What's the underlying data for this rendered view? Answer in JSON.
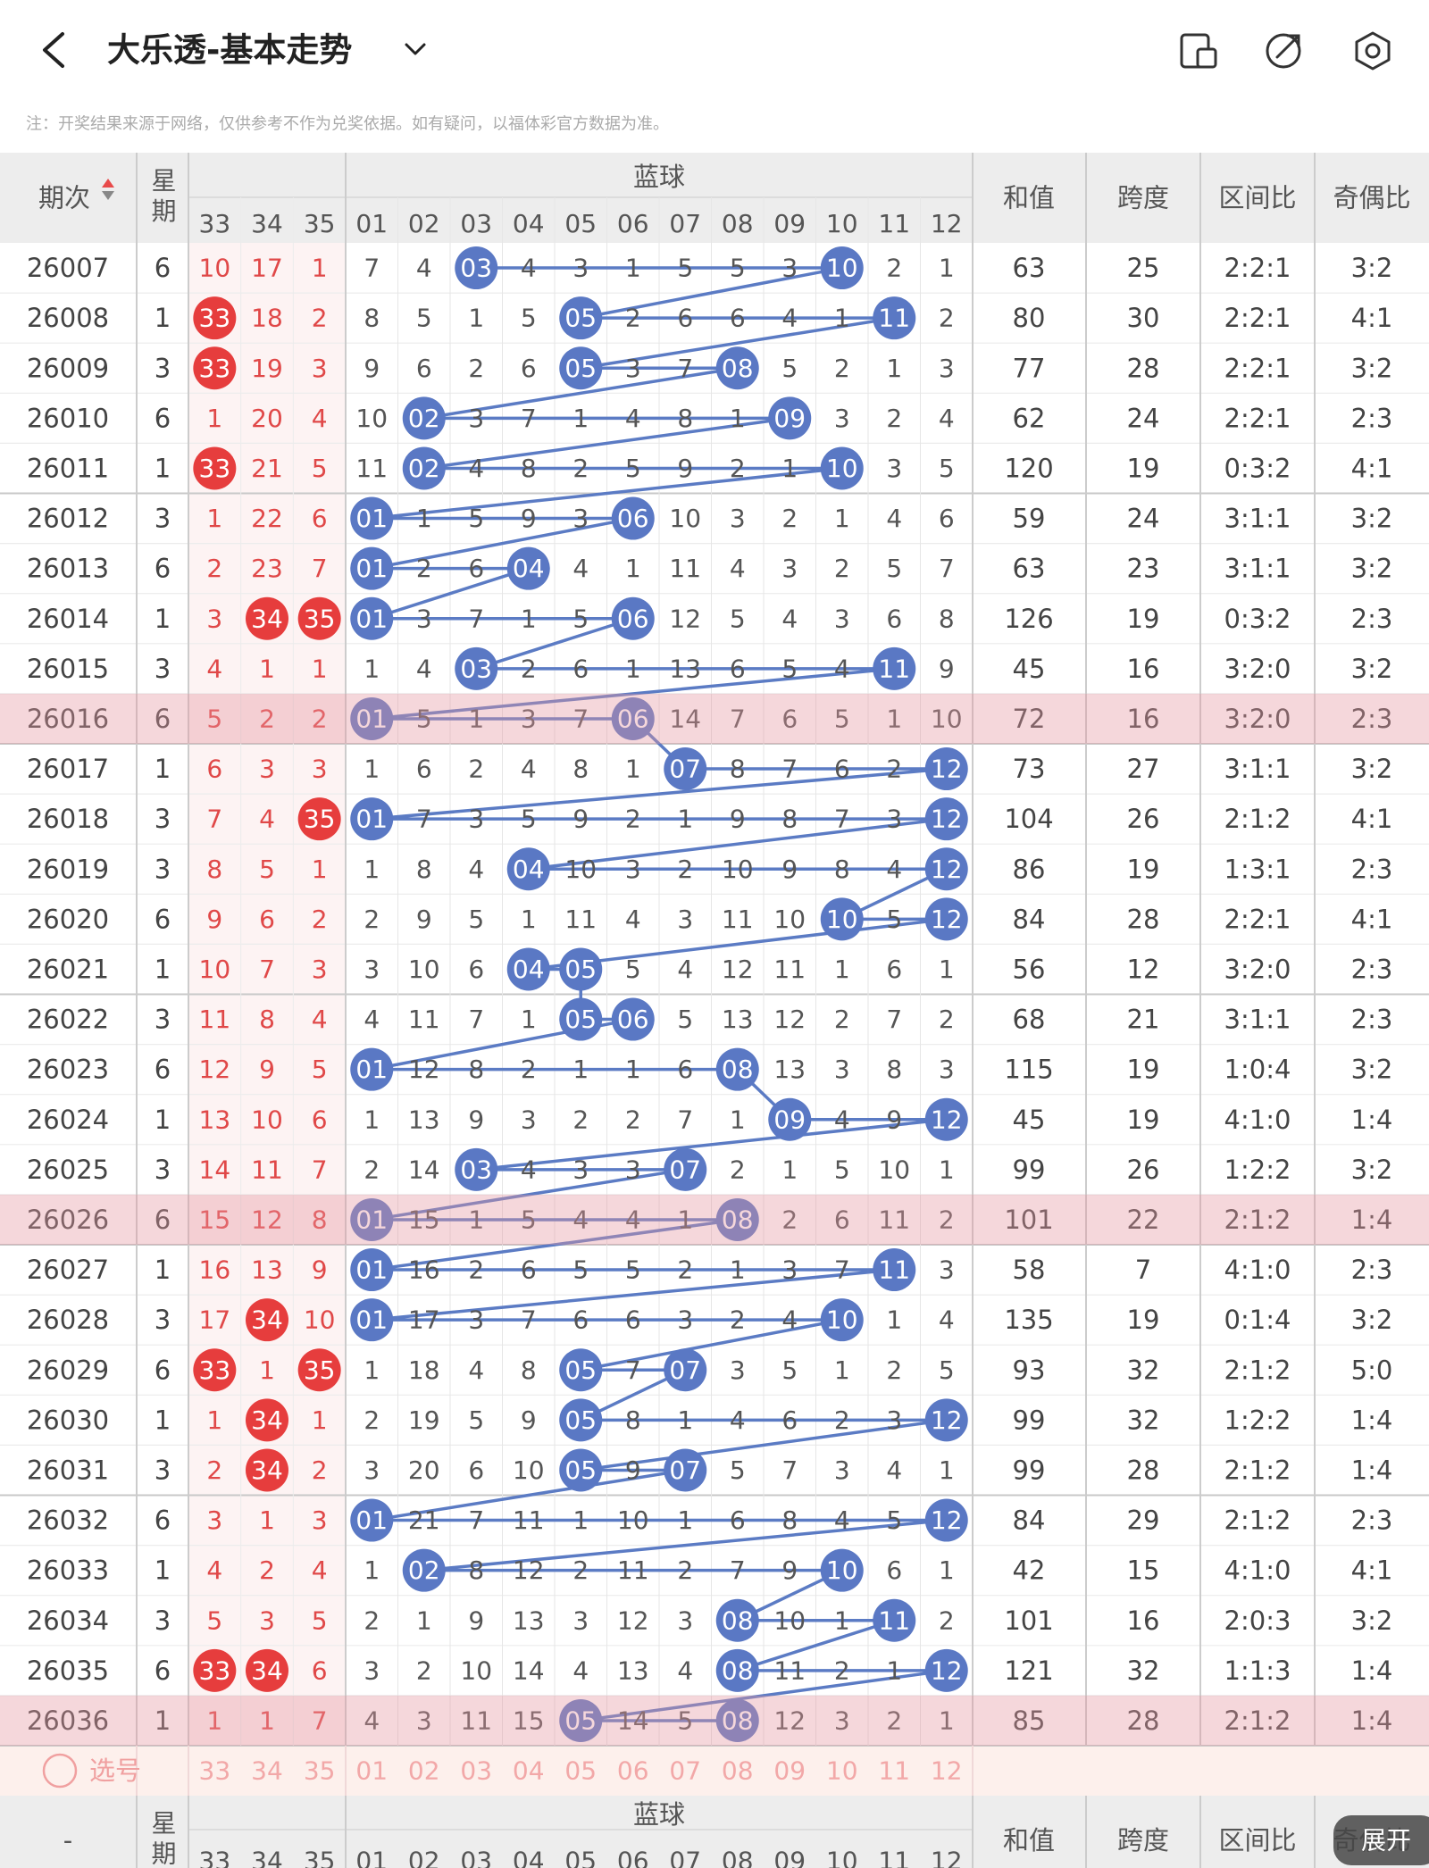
{
  "top_bar": {
    "title": "大乐透-基本走势"
  },
  "notice": "注：开奖结果来源于网络，仅供参考不作为兑奖依据。如有疑问，以福体彩官方数据为准。",
  "table": {
    "header": {
      "period": "期次",
      "week": "星期",
      "blue_group": "蓝球",
      "red_columns": [
        "33",
        "34",
        "35"
      ],
      "blue_columns": [
        "01",
        "02",
        "03",
        "04",
        "05",
        "06",
        "07",
        "08",
        "09",
        "10",
        "11",
        "12"
      ],
      "sum": "和值",
      "span": "跨度",
      "zone_ratio": "区间比",
      "odd_even_ratio": "奇偶比"
    },
    "rows": [
      {
        "period": "26007",
        "week": "6",
        "red": [
          "10",
          "17",
          "1"
        ],
        "blue": [
          "7",
          "4",
          {
            "ball": "03"
          },
          "4",
          "3",
          "1",
          "5",
          "5",
          "3",
          {
            "ball": "10"
          },
          "2",
          "1"
        ],
        "sum": "63",
        "span": "25",
        "zone_ratio": "2:2:1",
        "odd_even_ratio": "3:2"
      },
      {
        "period": "26008",
        "week": "1",
        "red": [
          {
            "ball": "33"
          },
          "18",
          "2"
        ],
        "blue": [
          "8",
          "5",
          "1",
          "5",
          {
            "ball": "05"
          },
          "2",
          "6",
          "6",
          "4",
          "1",
          {
            "ball": "11"
          },
          "2"
        ],
        "sum": "80",
        "span": "30",
        "zone_ratio": "2:2:1",
        "odd_even_ratio": "4:1"
      },
      {
        "period": "26009",
        "week": "3",
        "red": [
          {
            "ball": "33"
          },
          "19",
          "3"
        ],
        "blue": [
          "9",
          "6",
          "2",
          "6",
          {
            "ball": "05"
          },
          "3",
          "7",
          {
            "ball": "08"
          },
          "5",
          "2",
          "1",
          "3"
        ],
        "sum": "77",
        "span": "28",
        "zone_ratio": "2:2:1",
        "odd_even_ratio": "3:2"
      },
      {
        "period": "26010",
        "week": "6",
        "red": [
          "1",
          "20",
          "4"
        ],
        "blue": [
          "10",
          {
            "ball": "02"
          },
          "3",
          "7",
          "1",
          "4",
          "8",
          "1",
          {
            "ball": "09"
          },
          "3",
          "2",
          "4"
        ],
        "sum": "62",
        "span": "24",
        "zone_ratio": "2:2:1",
        "odd_even_ratio": "2:3"
      },
      {
        "period": "26011",
        "week": "1",
        "red": [
          {
            "ball": "33"
          },
          "21",
          "5"
        ],
        "blue": [
          "11",
          {
            "ball": "02"
          },
          "4",
          "8",
          "2",
          "5",
          "9",
          "2",
          "1",
          {
            "ball": "10"
          },
          "3",
          "5"
        ],
        "sum": "120",
        "span": "19",
        "zone_ratio": "0:3:2",
        "odd_even_ratio": "4:1"
      },
      {
        "period": "26012",
        "week": "3",
        "red": [
          "1",
          "22",
          "6"
        ],
        "blue": [
          {
            "ball": "01"
          },
          "1",
          "5",
          "9",
          "3",
          {
            "ball": "06"
          },
          "10",
          "3",
          "2",
          "1",
          "4",
          "6"
        ],
        "sum": "59",
        "span": "24",
        "zone_ratio": "3:1:1",
        "odd_even_ratio": "3:2"
      },
      {
        "period": "26013",
        "week": "6",
        "red": [
          "2",
          "23",
          "7"
        ],
        "blue": [
          {
            "ball": "01"
          },
          "2",
          "6",
          {
            "ball": "04"
          },
          "4",
          "1",
          "11",
          "4",
          "3",
          "2",
          "5",
          "7"
        ],
        "sum": "63",
        "span": "23",
        "zone_ratio": "3:1:1",
        "odd_even_ratio": "3:2"
      },
      {
        "period": "26014",
        "week": "1",
        "red": [
          "3",
          {
            "ball": "34"
          },
          {
            "ball": "35"
          }
        ],
        "blue": [
          {
            "ball": "01"
          },
          "3",
          "7",
          "1",
          "5",
          {
            "ball": "06"
          },
          "12",
          "5",
          "4",
          "3",
          "6",
          "8"
        ],
        "sum": "126",
        "span": "19",
        "zone_ratio": "0:3:2",
        "odd_even_ratio": "2:3"
      },
      {
        "period": "26015",
        "week": "3",
        "red": [
          "4",
          "1",
          "1"
        ],
        "blue": [
          "1",
          "4",
          {
            "ball": "03"
          },
          "2",
          "6",
          "1",
          "13",
          "6",
          "5",
          "4",
          {
            "ball": "11"
          },
          "9"
        ],
        "sum": "45",
        "span": "16",
        "zone_ratio": "3:2:0",
        "odd_even_ratio": "3:2"
      },
      {
        "period": "26016",
        "week": "6",
        "red": [
          "5",
          "2",
          "2"
        ],
        "blue": [
          {
            "ball": "01"
          },
          "5",
          "1",
          "3",
          "7",
          {
            "ball": "06"
          },
          "14",
          "7",
          "6",
          "5",
          "1",
          "10"
        ],
        "sum": "72",
        "span": "16",
        "zone_ratio": "3:2:0",
        "odd_even_ratio": "2:3"
      },
      {
        "period": "26017",
        "week": "1",
        "red": [
          "6",
          "3",
          "3"
        ],
        "blue": [
          "1",
          "6",
          "2",
          "4",
          "8",
          "1",
          {
            "ball": "07"
          },
          "8",
          "7",
          "6",
          "2",
          {
            "ball": "12"
          }
        ],
        "sum": "73",
        "span": "27",
        "zone_ratio": "3:1:1",
        "odd_even_ratio": "3:2"
      },
      {
        "period": "26018",
        "week": "3",
        "red": [
          "7",
          "4",
          {
            "ball": "35"
          }
        ],
        "blue": [
          {
            "ball": "01"
          },
          "7",
          "3",
          "5",
          "9",
          "2",
          "1",
          "9",
          "8",
          "7",
          "3",
          {
            "ball": "12"
          }
        ],
        "sum": "104",
        "span": "26",
        "zone_ratio": "2:1:2",
        "odd_even_ratio": "4:1"
      },
      {
        "period": "26019",
        "week": "3",
        "red": [
          "8",
          "5",
          "1"
        ],
        "blue": [
          "1",
          "8",
          "4",
          {
            "ball": "04"
          },
          "10",
          "3",
          "2",
          "10",
          "9",
          "8",
          "4",
          {
            "ball": "12"
          }
        ],
        "sum": "86",
        "span": "19",
        "zone_ratio": "1:3:1",
        "odd_even_ratio": "2:3"
      },
      {
        "period": "26020",
        "week": "6",
        "red": [
          "9",
          "6",
          "2"
        ],
        "blue": [
          "2",
          "9",
          "5",
          "1",
          "11",
          "4",
          "3",
          "11",
          "10",
          {
            "ball": "10"
          },
          "5",
          {
            "ball": "12"
          }
        ],
        "sum": "84",
        "span": "28",
        "zone_ratio": "2:2:1",
        "odd_even_ratio": "4:1"
      },
      {
        "period": "26021",
        "week": "1",
        "red": [
          "10",
          "7",
          "3"
        ],
        "blue": [
          "3",
          "10",
          "6",
          {
            "ball": "04"
          },
          {
            "ball": "05"
          },
          "5",
          "4",
          "12",
          "11",
          "1",
          "6",
          "1"
        ],
        "sum": "56",
        "span": "12",
        "zone_ratio": "3:2:0",
        "odd_even_ratio": "2:3"
      },
      {
        "period": "26022",
        "week": "3",
        "red": [
          "11",
          "8",
          "4"
        ],
        "blue": [
          "4",
          "11",
          "7",
          "1",
          {
            "ball": "05"
          },
          {
            "ball": "06"
          },
          "5",
          "13",
          "12",
          "2",
          "7",
          "2"
        ],
        "sum": "68",
        "span": "21",
        "zone_ratio": "3:1:1",
        "odd_even_ratio": "2:3"
      },
      {
        "period": "26023",
        "week": "6",
        "red": [
          "12",
          "9",
          "5"
        ],
        "blue": [
          {
            "ball": "01"
          },
          "12",
          "8",
          "2",
          "1",
          "1",
          "6",
          {
            "ball": "08"
          },
          "13",
          "3",
          "8",
          "3"
        ],
        "sum": "115",
        "span": "19",
        "zone_ratio": "1:0:4",
        "odd_even_ratio": "3:2"
      },
      {
        "period": "26024",
        "week": "1",
        "red": [
          "13",
          "10",
          "6"
        ],
        "blue": [
          "1",
          "13",
          "9",
          "3",
          "2",
          "2",
          "7",
          "1",
          {
            "ball": "09"
          },
          "4",
          "9",
          {
            "ball": "12"
          }
        ],
        "sum": "45",
        "span": "19",
        "zone_ratio": "4:1:0",
        "odd_even_ratio": "1:4"
      },
      {
        "period": "26025",
        "week": "3",
        "red": [
          "14",
          "11",
          "7"
        ],
        "blue": [
          "2",
          "14",
          {
            "ball": "03"
          },
          "4",
          "3",
          "3",
          {
            "ball": "07"
          },
          "2",
          "1",
          "5",
          "10",
          "1"
        ],
        "sum": "99",
        "span": "26",
        "zone_ratio": "1:2:2",
        "odd_even_ratio": "3:2"
      },
      {
        "period": "26026",
        "week": "6",
        "red": [
          "15",
          "12",
          "8"
        ],
        "blue": [
          {
            "ball": "01"
          },
          "15",
          "1",
          "5",
          "4",
          "4",
          "1",
          {
            "ball": "08"
          },
          "2",
          "6",
          "11",
          "2"
        ],
        "sum": "101",
        "span": "22",
        "zone_ratio": "2:1:2",
        "odd_even_ratio": "1:4"
      },
      {
        "period": "26027",
        "week": "1",
        "red": [
          "16",
          "13",
          "9"
        ],
        "blue": [
          {
            "ball": "01"
          },
          "16",
          "2",
          "6",
          "5",
          "5",
          "2",
          "1",
          "3",
          "7",
          {
            "ball": "11"
          },
          "3"
        ],
        "sum": "58",
        "span": "7",
        "zone_ratio": "4:1:0",
        "odd_even_ratio": "2:3"
      },
      {
        "period": "26028",
        "week": "3",
        "red": [
          "17",
          {
            "ball": "34"
          },
          "10"
        ],
        "blue": [
          {
            "ball": "01"
          },
          "17",
          "3",
          "7",
          "6",
          "6",
          "3",
          "2",
          "4",
          {
            "ball": "10"
          },
          "1",
          "4"
        ],
        "sum": "135",
        "span": "19",
        "zone_ratio": "0:1:4",
        "odd_even_ratio": "3:2"
      },
      {
        "period": "26029",
        "week": "6",
        "red": [
          {
            "ball": "33"
          },
          "1",
          {
            "ball": "35"
          }
        ],
        "blue": [
          "1",
          "18",
          "4",
          "8",
          {
            "ball": "05"
          },
          "7",
          {
            "ball": "07"
          },
          "3",
          "5",
          "1",
          "2",
          "5"
        ],
        "sum": "93",
        "span": "32",
        "zone_ratio": "2:1:2",
        "odd_even_ratio": "5:0"
      },
      {
        "period": "26030",
        "week": "1",
        "red": [
          "1",
          {
            "ball": "34"
          },
          "1"
        ],
        "blue": [
          "2",
          "19",
          "5",
          "9",
          {
            "ball": "05"
          },
          "8",
          "1",
          "4",
          "6",
          "2",
          "3",
          {
            "ball": "12"
          }
        ],
        "sum": "99",
        "span": "32",
        "zone_ratio": "1:2:2",
        "odd_even_ratio": "1:4"
      },
      {
        "period": "26031",
        "week": "3",
        "red": [
          "2",
          {
            "ball": "34"
          },
          "2"
        ],
        "blue": [
          "3",
          "20",
          "6",
          "10",
          {
            "ball": "05"
          },
          "9",
          {
            "ball": "07"
          },
          "5",
          "7",
          "3",
          "4",
          "1"
        ],
        "sum": "99",
        "span": "28",
        "zone_ratio": "2:1:2",
        "odd_even_ratio": "1:4"
      },
      {
        "period": "26032",
        "week": "6",
        "red": [
          "3",
          "1",
          "3"
        ],
        "blue": [
          {
            "ball": "01"
          },
          "21",
          "7",
          "11",
          "1",
          "10",
          "1",
          "6",
          "8",
          "4",
          "5",
          {
            "ball": "12"
          }
        ],
        "sum": "84",
        "span": "29",
        "zone_ratio": "2:1:2",
        "odd_even_ratio": "2:3"
      },
      {
        "period": "26033",
        "week": "1",
        "red": [
          "4",
          "2",
          "4"
        ],
        "blue": [
          "1",
          {
            "ball": "02"
          },
          "8",
          "12",
          "2",
          "11",
          "2",
          "7",
          "9",
          {
            "ball": "10"
          },
          "6",
          "1"
        ],
        "sum": "42",
        "span": "15",
        "zone_ratio": "4:1:0",
        "odd_even_ratio": "4:1"
      },
      {
        "period": "26034",
        "week": "3",
        "red": [
          "5",
          "3",
          "5"
        ],
        "blue": [
          "2",
          "1",
          "9",
          "13",
          "3",
          "12",
          "3",
          {
            "ball": "08"
          },
          "10",
          "1",
          {
            "ball": "11"
          },
          "2"
        ],
        "sum": "101",
        "span": "16",
        "zone_ratio": "2:0:3",
        "odd_even_ratio": "3:2"
      },
      {
        "period": "26035",
        "week": "6",
        "red": [
          {
            "ball": "33"
          },
          {
            "ball": "34"
          },
          "6"
        ],
        "blue": [
          "3",
          "2",
          "10",
          "14",
          "4",
          "13",
          "4",
          {
            "ball": "08"
          },
          "11",
          "2",
          "1",
          {
            "ball": "12"
          }
        ],
        "sum": "121",
        "span": "32",
        "zone_ratio": "1:1:3",
        "odd_even_ratio": "1:4"
      },
      {
        "period": "26036",
        "week": "1",
        "red": [
          "1",
          "1",
          "7"
        ],
        "blue": [
          "4",
          "3",
          "11",
          "15",
          {
            "ball": "05"
          },
          "14",
          "5",
          {
            "ball": "08"
          },
          "12",
          "3",
          "2",
          "1"
        ],
        "sum": "85",
        "span": "28",
        "zone_ratio": "2:1:2",
        "odd_even_ratio": "1:4"
      }
    ],
    "footer": {
      "select": "选号"
    }
  },
  "bottom_header": {
    "period": "-"
  },
  "expand_button": "展开"
}
